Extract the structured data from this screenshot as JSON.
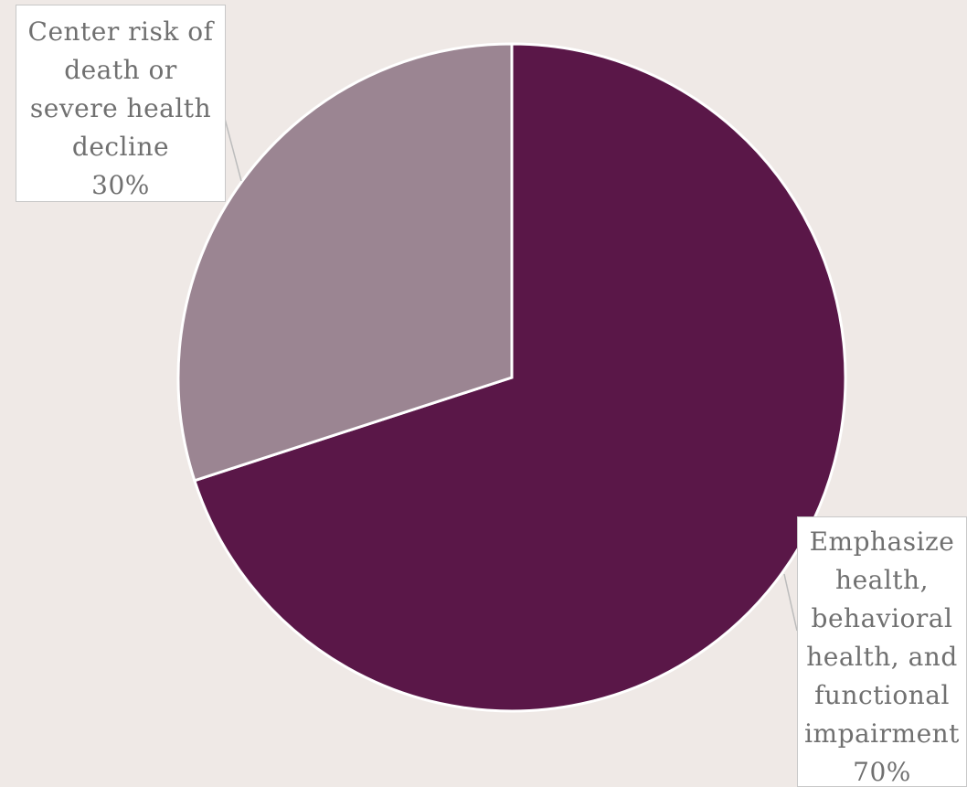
{
  "chart_data": {
    "type": "pie",
    "title": "",
    "slices": [
      {
        "label": "Emphasize health, behavioral health, and functional impairment",
        "label_lines": [
          "Emphasize",
          "health,",
          "behavioral",
          "health, and",
          "functional",
          "impairment"
        ],
        "value": 70,
        "display_value": "70%",
        "color": "#5a1748"
      },
      {
        "label": "Center risk of death or severe health decline",
        "label_lines": [
          "Center risk of",
          "death or",
          "severe health",
          "decline"
        ],
        "value": 30,
        "display_value": "30%",
        "color": "#9b8592"
      }
    ],
    "start_angle_deg": 0,
    "direction": "clockwise",
    "legend": "none",
    "background_color": "#efe9e6"
  }
}
